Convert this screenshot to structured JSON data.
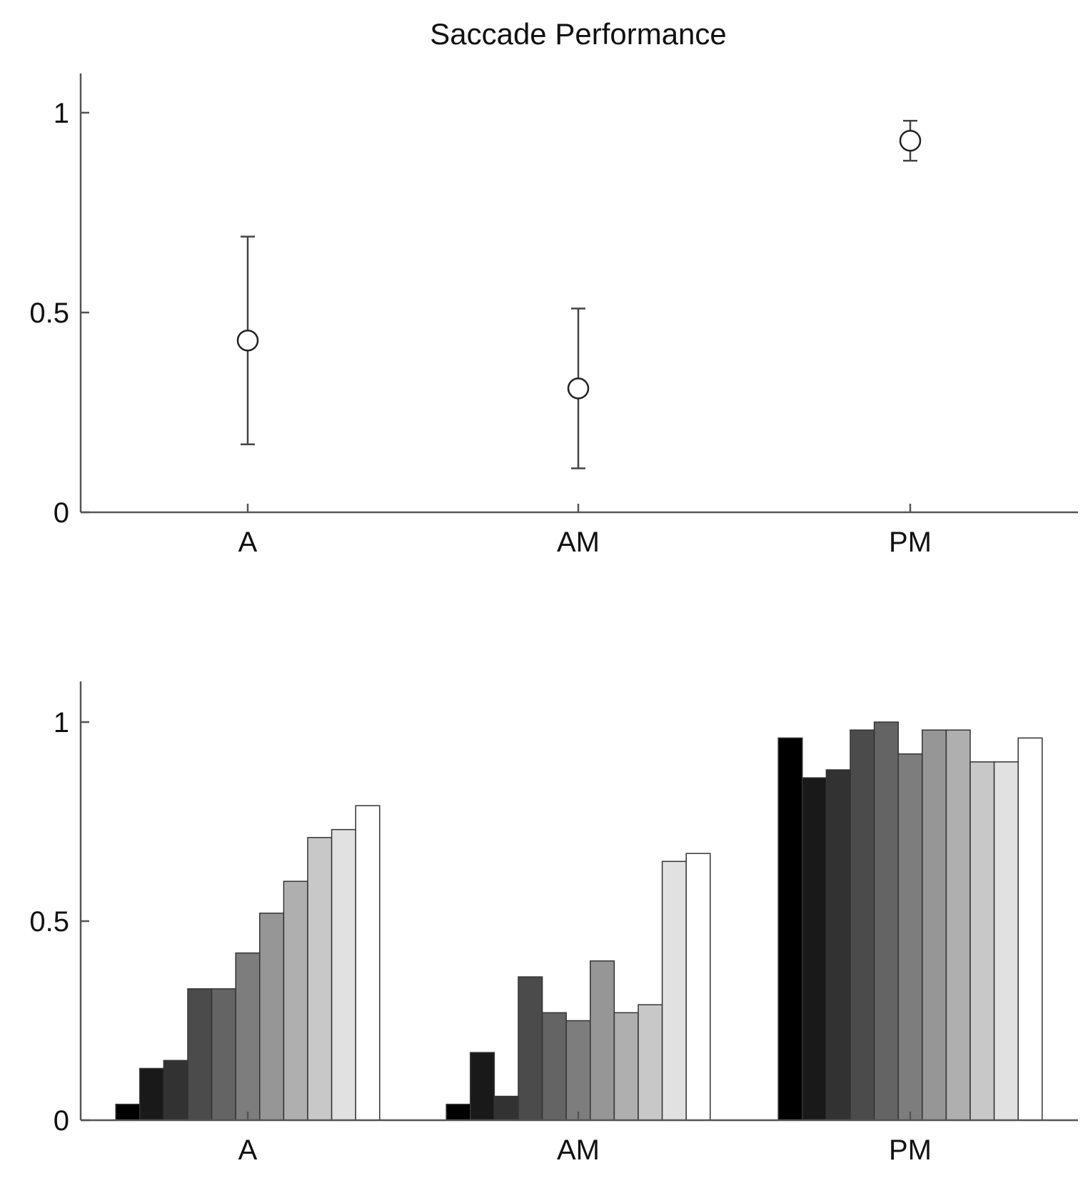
{
  "chart_data": [
    {
      "type": "scatter",
      "title": "Saccade Performance",
      "categories": [
        "A",
        "AM",
        "PM"
      ],
      "values": [
        0.43,
        0.31,
        0.93
      ],
      "error_low": [
        0.17,
        0.11,
        0.88
      ],
      "error_high": [
        0.69,
        0.51,
        0.98
      ],
      "ylim": [
        0,
        1.1
      ],
      "yticks": [
        "0",
        "0.5",
        "1"
      ],
      "marker": "open-circle",
      "grid": false
    },
    {
      "type": "bar",
      "categories": [
        "A",
        "AM",
        "PM"
      ],
      "series_values": [
        [
          0.04,
          0.13,
          0.15,
          0.33,
          0.33,
          0.42,
          0.52,
          0.6,
          0.71,
          0.73,
          0.79
        ],
        [
          0.04,
          0.17,
          0.06,
          0.36,
          0.27,
          0.25,
          0.4,
          0.27,
          0.29,
          0.65,
          0.67
        ],
        [
          0.96,
          0.86,
          0.88,
          0.98,
          1.0,
          0.92,
          0.98,
          0.98,
          0.9,
          0.9,
          0.96
        ]
      ],
      "series_colors": [
        "#000000",
        "#191919",
        "#323232",
        "#4b4b4b",
        "#646464",
        "#7d7d7d",
        "#969696",
        "#afafaf",
        "#c8c8c8",
        "#e1e1e1",
        "#ffffff"
      ],
      "ylim": [
        0,
        1.1
      ],
      "yticks": [
        "0",
        "0.5",
        "1"
      ],
      "grid": false
    }
  ]
}
